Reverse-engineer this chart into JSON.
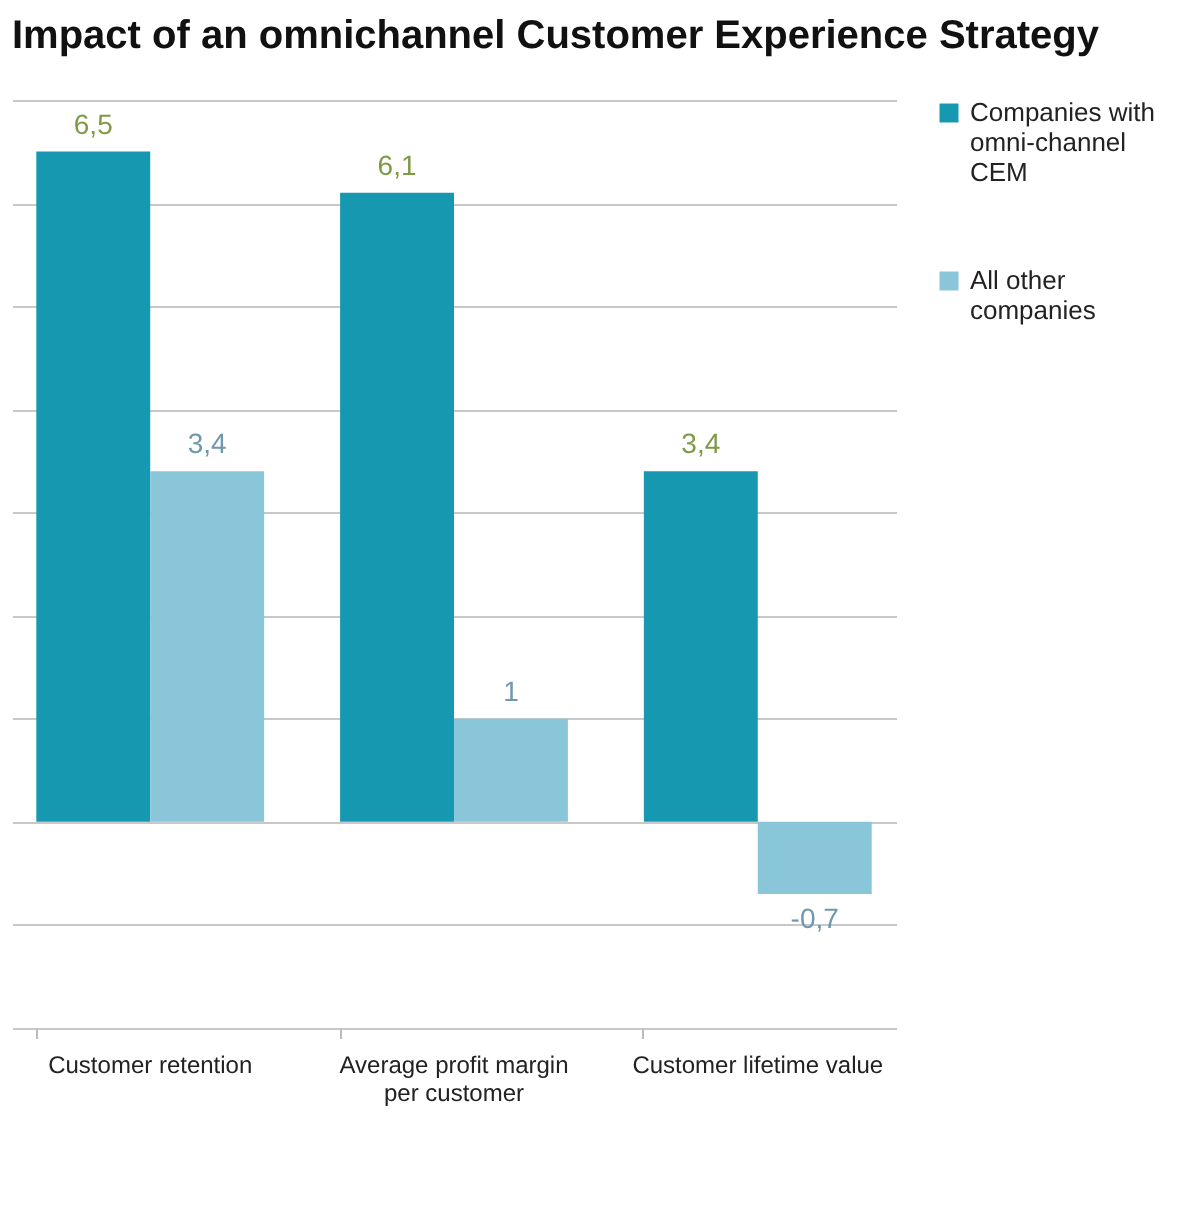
{
  "chart_data": {
    "type": "bar",
    "title": "Impact of an omnichannel Customer Experience Strategy",
    "categories": [
      "Customer retention",
      "Average profit margin per customer",
      "Customer lifetime value"
    ],
    "series": [
      {
        "name": "Companies with omni-channel CEM",
        "color": "#1699b0",
        "values": [
          6.5,
          6.1,
          3.4
        ],
        "value_labels": [
          "6,5",
          "6,1",
          "3,4"
        ]
      },
      {
        "name": "All other companies",
        "color": "#8ac6d9",
        "values": [
          3.4,
          1,
          -0.7
        ],
        "value_labels": [
          "3,4",
          "1",
          "-0,7"
        ]
      }
    ],
    "ylim": [
      -2,
      7
    ],
    "yticks": [
      {
        "value": -2,
        "label": null
      },
      {
        "value": -1,
        "label": null
      },
      {
        "value": 0,
        "label": null
      },
      {
        "value": 1,
        "label": null
      },
      {
        "value": 2,
        "label": null
      },
      {
        "value": 3,
        "label": null
      },
      {
        "value": 4,
        "label": null
      },
      {
        "value": 5,
        "label": null
      },
      {
        "value": 6,
        "label": null
      },
      {
        "value": 7,
        "label": null
      }
    ],
    "grid": "y",
    "legend": "right",
    "tick_labels": "x"
  }
}
